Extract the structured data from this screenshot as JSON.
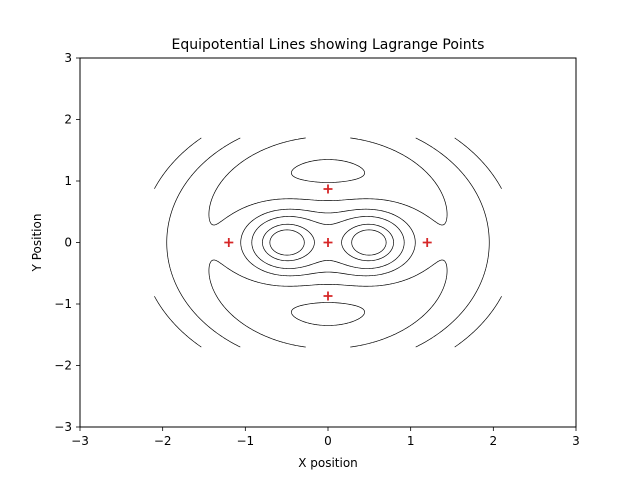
{
  "chart_data": {
    "type": "contour",
    "title": "Equipotential Lines showing Lagrange Points",
    "xlabel": "X position",
    "ylabel": "Y Position",
    "xlim": [
      -3,
      3
    ],
    "ylim": [
      -3,
      3
    ],
    "xticks": [
      -3,
      -2,
      -1,
      0,
      1,
      2,
      3
    ],
    "yticks": [
      -3,
      -2,
      -1,
      0,
      1,
      2,
      3
    ],
    "grid": false,
    "masses": [
      {
        "x": -0.5,
        "y": 0
      },
      {
        "x": 0.5,
        "y": 0
      }
    ],
    "contour_levels": [
      -6.0,
      -4.5,
      -3.5,
      -3.0,
      -2.6,
      -2.3,
      -2.1,
      -1.9,
      -1.75,
      -1.6,
      -1.45,
      -1.3,
      -1.15,
      -1.0,
      -0.85,
      -0.7,
      -0.55,
      -0.4
    ],
    "line_color": "#000000",
    "lagrange_points": [
      {
        "x": -1.2,
        "y": 0
      },
      {
        "x": 0,
        "y": 0
      },
      {
        "x": 1.2,
        "y": 0
      },
      {
        "x": 0,
        "y": 0.87
      },
      {
        "x": 0,
        "y": -0.87
      }
    ],
    "marker_color": "#d62728",
    "marker": "+"
  }
}
